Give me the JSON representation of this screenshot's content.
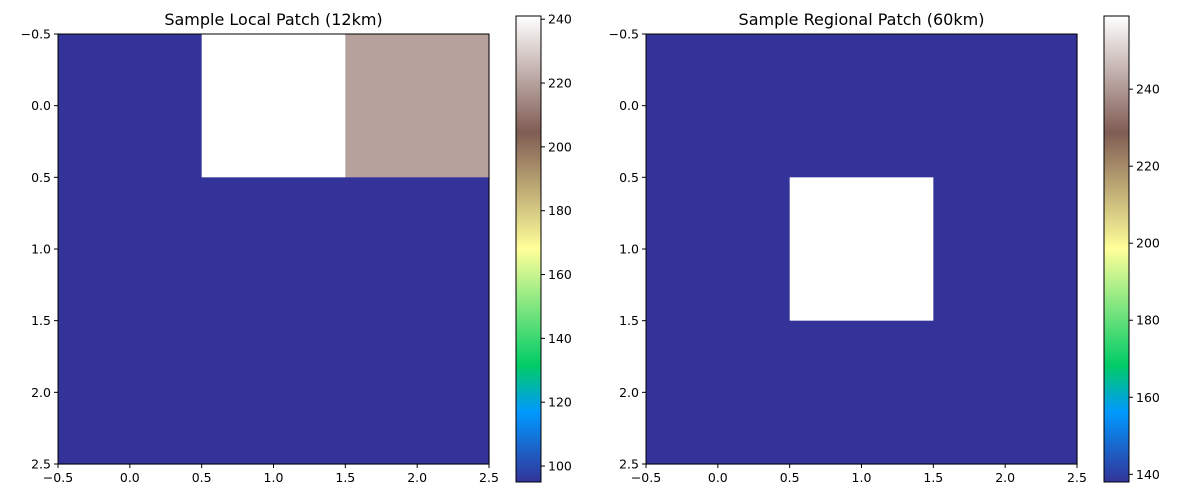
{
  "chart_data": [
    {
      "type": "heatmap",
      "title": "Sample Local Patch (12km)",
      "colormap": "terrain",
      "x_ticks": [
        "−0.5",
        "0.0",
        "0.5",
        "1.0",
        "1.5",
        "2.0",
        "2.5"
      ],
      "y_ticks": [
        "−0.5",
        "0.0",
        "0.5",
        "1.0",
        "1.5",
        "2.0",
        "2.5"
      ],
      "xlim": [
        -0.5,
        2.5
      ],
      "ylim": [
        2.5,
        -0.5
      ],
      "values": [
        [
          95,
          241,
          220
        ],
        [
          95,
          95,
          95
        ],
        [
          95,
          95,
          95
        ]
      ],
      "colorbar": {
        "min": 95,
        "max": 241,
        "ticks": [
          "100",
          "120",
          "140",
          "160",
          "180",
          "200",
          "220",
          "240"
        ]
      }
    },
    {
      "type": "heatmap",
      "title": "Sample Regional Patch (60km)",
      "colormap": "terrain",
      "x_ticks": [
        "−0.5",
        "0.0",
        "0.5",
        "1.0",
        "1.5",
        "2.0",
        "2.5"
      ],
      "y_ticks": [
        "−0.5",
        "0.0",
        "0.5",
        "1.0",
        "1.5",
        "2.0",
        "2.5"
      ],
      "xlim": [
        -0.5,
        2.5
      ],
      "ylim": [
        2.5,
        -0.5
      ],
      "values": [
        [
          138,
          138,
          138
        ],
        [
          138,
          259,
          138
        ],
        [
          138,
          138,
          138
        ]
      ],
      "colorbar": {
        "min": 138,
        "max": 259,
        "ticks": [
          "140",
          "160",
          "180",
          "200",
          "220",
          "240"
        ]
      }
    }
  ]
}
